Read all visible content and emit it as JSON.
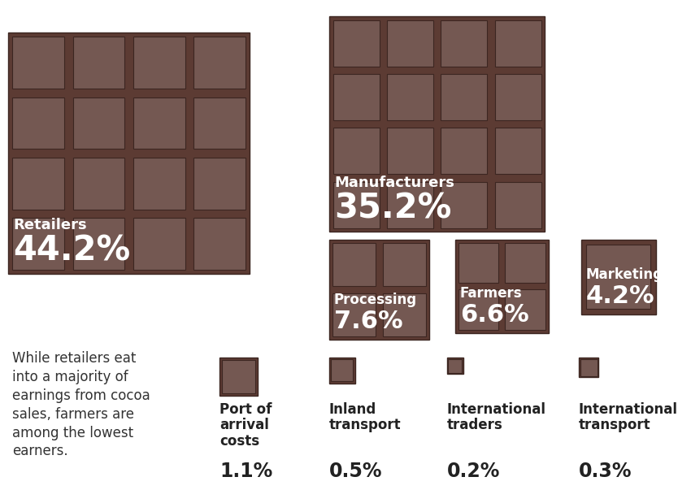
{
  "chart_data": {
    "type": "proportional_area",
    "categories": [
      "Retailers",
      "Manufacturers",
      "Processing",
      "Farmers",
      "Marketing",
      "Port of arrival costs",
      "Inland transport",
      "International traders",
      "International transport"
    ],
    "values": [
      44.2,
      35.2,
      7.6,
      6.6,
      4.2,
      1.1,
      0.5,
      0.2,
      0.3
    ],
    "value_labels": [
      "44.2%",
      "35.2%",
      "7.6%",
      "6.6%",
      "4.2%",
      "1.1%",
      "0.5%",
      "0.2%",
      "0.3%"
    ],
    "data_labels": true,
    "color": "#5c3b33",
    "annotation": "While retailers eat into a majority of earnings from cocoa sales, farmers are among the lowest earners."
  }
}
